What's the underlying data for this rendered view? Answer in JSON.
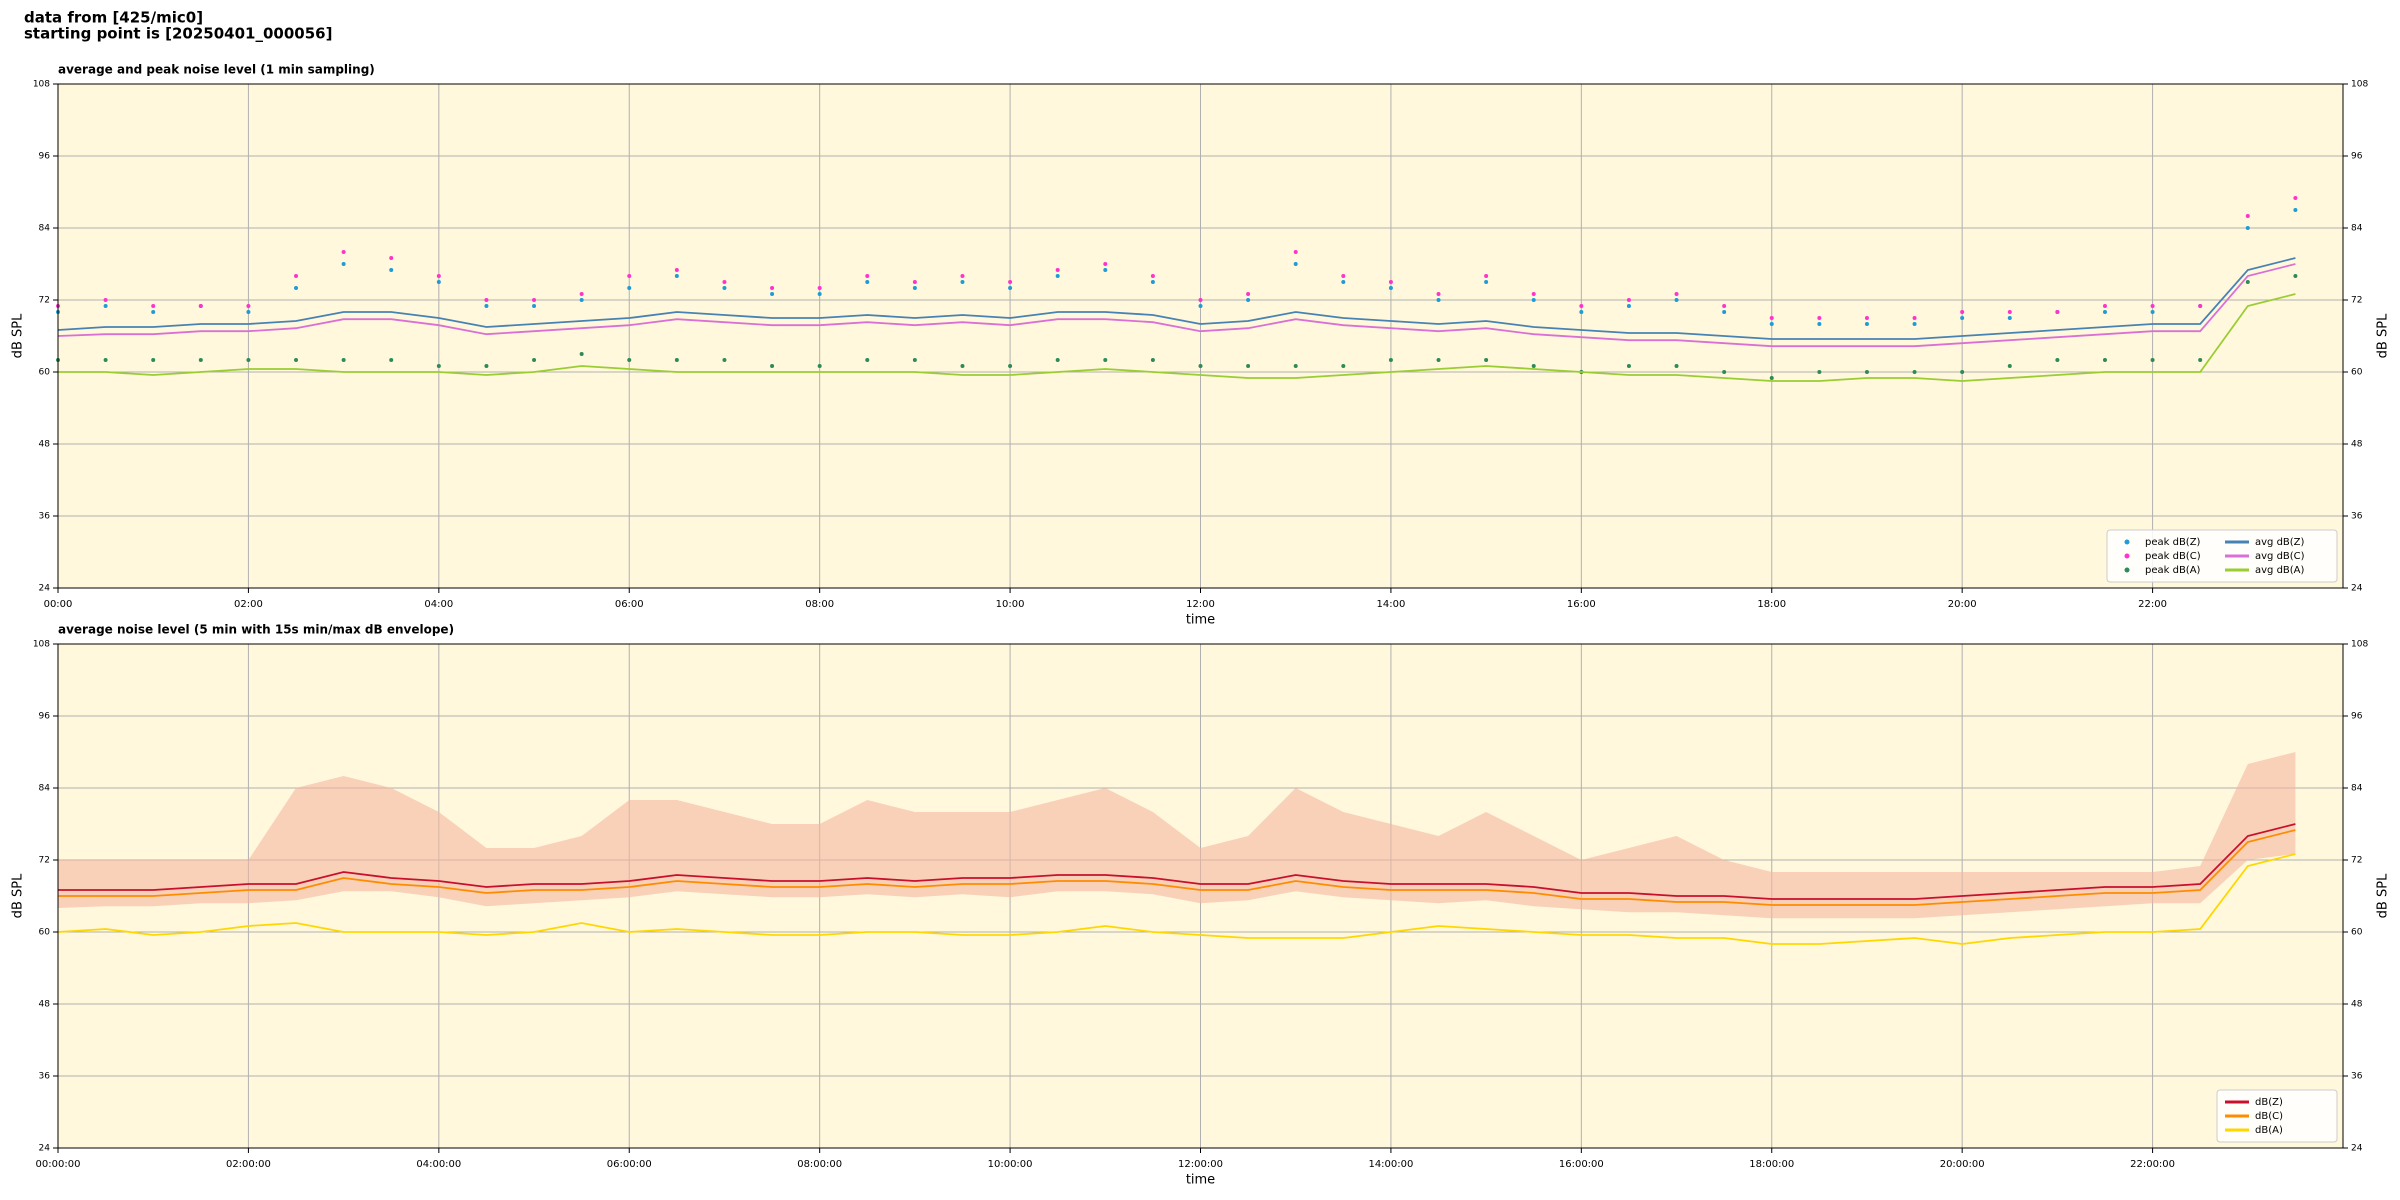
{
  "header": {
    "lines": [
      "data from [425/mic0]",
      "starting point is [20250401_000056]"
    ]
  },
  "chart_data": [
    {
      "type": "line",
      "title": "average and peak noise level (1 min sampling)",
      "xlabel": "time",
      "ylabel": "dB SPL",
      "x": [
        0,
        0.5,
        1,
        1.5,
        2,
        2.5,
        3,
        3.5,
        4,
        4.5,
        5,
        5.5,
        6,
        6.5,
        7,
        7.5,
        8,
        8.5,
        9,
        9.5,
        10,
        10.5,
        11,
        11.5,
        12,
        12.5,
        13,
        13.5,
        14,
        14.5,
        15,
        15.5,
        16,
        16.5,
        17,
        17.5,
        18,
        18.5,
        19,
        19.5,
        20,
        20.5,
        21,
        21.5,
        22,
        22.5,
        23,
        23.5
      ],
      "xlim": [
        0,
        24
      ],
      "xticks": [
        {
          "value": 0,
          "label": "00:00"
        },
        {
          "value": 2,
          "label": "02:00"
        },
        {
          "value": 4,
          "label": "04:00"
        },
        {
          "value": 6,
          "label": "06:00"
        },
        {
          "value": 8,
          "label": "08:00"
        },
        {
          "value": 10,
          "label": "10:00"
        },
        {
          "value": 12,
          "label": "12:00"
        },
        {
          "value": 14,
          "label": "14:00"
        },
        {
          "value": 16,
          "label": "16:00"
        },
        {
          "value": 18,
          "label": "18:00"
        },
        {
          "value": 20,
          "label": "20:00"
        },
        {
          "value": 22,
          "label": "22:00"
        }
      ],
      "ylim": [
        24,
        108
      ],
      "yticks": [
        24,
        36,
        48,
        60,
        72,
        84,
        96,
        108
      ],
      "grid": true,
      "background": "#fff8dc",
      "legend": "lower right",
      "legend_columns": 2,
      "series": [
        {
          "name": "peak dB(Z)",
          "color": "#1f9bd8",
          "mark": "dot",
          "values": [
            70,
            71,
            70,
            71,
            70,
            74,
            78,
            77,
            75,
            71,
            71,
            72,
            74,
            76,
            74,
            73,
            73,
            75,
            74,
            75,
            74,
            76,
            77,
            75,
            71,
            72,
            78,
            75,
            74,
            72,
            75,
            72,
            70,
            71,
            72,
            70,
            68,
            68,
            68,
            68,
            69,
            69,
            70,
            70,
            70,
            71,
            84,
            87
          ]
        },
        {
          "name": "peak dB(C)",
          "color": "#ff33cc",
          "mark": "dot",
          "values": [
            71,
            72,
            71,
            71,
            71,
            76,
            80,
            79,
            76,
            72,
            72,
            73,
            76,
            77,
            75,
            74,
            74,
            76,
            75,
            76,
            75,
            77,
            78,
            76,
            72,
            73,
            80,
            76,
            75,
            73,
            76,
            73,
            71,
            72,
            73,
            71,
            69,
            69,
            69,
            69,
            70,
            70,
            70,
            71,
            71,
            71,
            86,
            89
          ]
        },
        {
          "name": "peak dB(A)",
          "color": "#2e8b57",
          "mark": "dot",
          "values": [
            62,
            62,
            62,
            62,
            62,
            62,
            62,
            62,
            61,
            61,
            62,
            63,
            62,
            62,
            62,
            61,
            61,
            62,
            62,
            61,
            61,
            62,
            62,
            62,
            61,
            61,
            61,
            61,
            62,
            62,
            62,
            61,
            60,
            61,
            61,
            60,
            59,
            60,
            60,
            60,
            60,
            61,
            62,
            62,
            62,
            62,
            75,
            76
          ]
        },
        {
          "name": "avg dB(Z)",
          "color": "#4682b4",
          "mark": "line",
          "values": [
            67,
            67.5,
            67.5,
            68,
            68,
            68.5,
            70,
            70,
            69,
            67.5,
            68,
            68.5,
            69,
            70,
            69.5,
            69,
            69,
            69.5,
            69,
            69.5,
            69,
            70,
            70,
            69.5,
            68,
            68.5,
            70,
            69,
            68.5,
            68,
            68.5,
            67.5,
            67,
            66.5,
            66.5,
            66,
            65.5,
            65.5,
            65.5,
            65.5,
            66,
            66.5,
            67,
            67.5,
            68,
            68,
            77,
            79
          ]
        },
        {
          "name": "avg dB(C)",
          "color": "#da70d6",
          "mark": "line",
          "values": [
            66,
            66.3,
            66.3,
            66.8,
            66.8,
            67.3,
            68.8,
            68.8,
            67.8,
            66.3,
            66.8,
            67.3,
            67.8,
            68.8,
            68.3,
            67.8,
            67.8,
            68.3,
            67.8,
            68.3,
            67.8,
            68.8,
            68.8,
            68.3,
            66.8,
            67.3,
            68.8,
            67.8,
            67.3,
            66.8,
            67.3,
            66.3,
            65.8,
            65.3,
            65.3,
            64.8,
            64.3,
            64.3,
            64.3,
            64.3,
            64.8,
            65.3,
            65.8,
            66.3,
            66.8,
            66.8,
            76,
            78
          ]
        },
        {
          "name": "avg dB(A)",
          "color": "#9acd32",
          "mark": "line",
          "values": [
            60,
            60,
            59.5,
            60,
            60.5,
            60.5,
            60,
            60,
            60,
            59.5,
            60,
            61,
            60.5,
            60,
            60,
            60,
            60,
            60,
            60,
            59.5,
            59.5,
            60,
            60.5,
            60,
            59.5,
            59,
            59,
            59.5,
            60,
            60.5,
            61,
            60.5,
            60,
            59.5,
            59.5,
            59,
            58.5,
            58.5,
            59,
            59,
            58.5,
            59,
            59.5,
            60,
            60,
            60,
            71,
            73
          ]
        }
      ]
    },
    {
      "type": "line",
      "title": "average noise level (5 min with 15s min/max dB envelope)",
      "xlabel": "time",
      "ylabel": "dB SPL",
      "x": [
        0,
        0.5,
        1,
        1.5,
        2,
        2.5,
        3,
        3.5,
        4,
        4.5,
        5,
        5.5,
        6,
        6.5,
        7,
        7.5,
        8,
        8.5,
        9,
        9.5,
        10,
        10.5,
        11,
        11.5,
        12,
        12.5,
        13,
        13.5,
        14,
        14.5,
        15,
        15.5,
        16,
        16.5,
        17,
        17.5,
        18,
        18.5,
        19,
        19.5,
        20,
        20.5,
        21,
        21.5,
        22,
        22.5,
        23,
        23.5
      ],
      "xlim": [
        0,
        24
      ],
      "xticks": [
        {
          "value": 0,
          "label": "00:00:00"
        },
        {
          "value": 2,
          "label": "02:00:00"
        },
        {
          "value": 4,
          "label": "04:00:00"
        },
        {
          "value": 6,
          "label": "06:00:00"
        },
        {
          "value": 8,
          "label": "08:00:00"
        },
        {
          "value": 10,
          "label": "10:00:00"
        },
        {
          "value": 12,
          "label": "12:00:00"
        },
        {
          "value": 14,
          "label": "14:00:00"
        },
        {
          "value": 16,
          "label": "16:00:00"
        },
        {
          "value": 18,
          "label": "18:00:00"
        },
        {
          "value": 20,
          "label": "20:00:00"
        },
        {
          "value": 22,
          "label": "22:00:00"
        }
      ],
      "ylim": [
        24,
        108
      ],
      "yticks": [
        24,
        36,
        48,
        60,
        72,
        84,
        96,
        108
      ],
      "grid": true,
      "background": "#fff8dc",
      "legend": "lower right",
      "legend_columns": 1,
      "envelope": {
        "color": "#f4b8a0",
        "upper": [
          72,
          72,
          72,
          72,
          72,
          84,
          86,
          84,
          80,
          74,
          74,
          76,
          82,
          82,
          80,
          78,
          78,
          82,
          80,
          80,
          80,
          82,
          84,
          80,
          74,
          76,
          84,
          80,
          78,
          76,
          80,
          76,
          72,
          74,
          76,
          72,
          70,
          70,
          70,
          70,
          70,
          70,
          70,
          70,
          70,
          71,
          88,
          90
        ],
        "lower": [
          64,
          64.3,
          64.3,
          64.8,
          64.8,
          65.3,
          66.8,
          66.8,
          65.8,
          64.3,
          64.8,
          65.3,
          65.8,
          66.8,
          66.3,
          65.8,
          65.8,
          66.3,
          65.8,
          66.3,
          65.8,
          66.8,
          66.8,
          66.3,
          64.8,
          65.3,
          66.8,
          65.8,
          65.3,
          64.8,
          65.3,
          64.3,
          63.8,
          63.3,
          63.3,
          62.8,
          62.3,
          62.3,
          62.3,
          62.3,
          62.8,
          63.3,
          63.8,
          64.3,
          64.8,
          64.8,
          72,
          73
        ]
      },
      "series": [
        {
          "name": "dB(Z)",
          "color": "#c8102e",
          "mark": "line",
          "values": [
            67,
            67,
            67,
            67.5,
            68,
            68,
            70,
            69,
            68.5,
            67.5,
            68,
            68,
            68.5,
            69.5,
            69,
            68.5,
            68.5,
            69,
            68.5,
            69,
            69,
            69.5,
            69.5,
            69,
            68,
            68,
            69.5,
            68.5,
            68,
            68,
            68,
            67.5,
            66.5,
            66.5,
            66,
            66,
            65.5,
            65.5,
            65.5,
            65.5,
            66,
            66.5,
            67,
            67.5,
            67.5,
            68,
            76,
            78
          ]
        },
        {
          "name": "dB(C)",
          "color": "#ff8c00",
          "mark": "line",
          "values": [
            66,
            66,
            66,
            66.5,
            67,
            67,
            69,
            68,
            67.5,
            66.5,
            67,
            67,
            67.5,
            68.5,
            68,
            67.5,
            67.5,
            68,
            67.5,
            68,
            68,
            68.5,
            68.5,
            68,
            67,
            67,
            68.5,
            67.5,
            67,
            67,
            67,
            66.5,
            65.5,
            65.5,
            65,
            65,
            64.5,
            64.5,
            64.5,
            64.5,
            65,
            65.5,
            66,
            66.5,
            66.5,
            67,
            75,
            77
          ]
        },
        {
          "name": "dB(A)",
          "color": "#ffd700",
          "mark": "line",
          "values": [
            60,
            60.5,
            59.5,
            60,
            61,
            61.5,
            60,
            60,
            60,
            59.5,
            60,
            61.5,
            60,
            60.5,
            60,
            59.5,
            59.5,
            60,
            60,
            59.5,
            59.5,
            60,
            61,
            60,
            59.5,
            59,
            59,
            59,
            60,
            61,
            60.5,
            60,
            59.5,
            59.5,
            59,
            59,
            58,
            58,
            58.5,
            59,
            58,
            59,
            59.5,
            60,
            60,
            60.5,
            71,
            73
          ]
        }
      ]
    }
  ]
}
